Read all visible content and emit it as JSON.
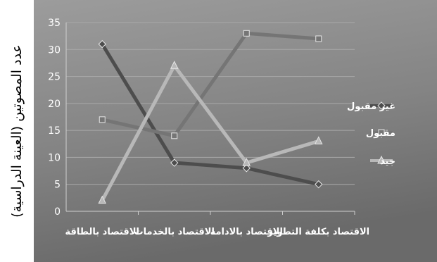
{
  "chart_data": {
    "type": "line",
    "title": "",
    "xlabel": "",
    "ylabel": "عدد المصوتين (العينة الدراسية)",
    "ylim": [
      0,
      35
    ],
    "y_ticks": [
      "0",
      "5",
      "10",
      "15",
      "20",
      "25",
      "30",
      "35"
    ],
    "grid": true,
    "legend_position": "right",
    "categories": [
      "الاقتصاد بالطاقة",
      "الاقتصاد بالخدمات",
      "الاقتصاد بالادامة",
      "الاقتصاد بكلفة التطوير"
    ],
    "series": [
      {
        "name": "غير مقبول",
        "values": [
          31,
          9,
          8,
          5
        ],
        "color": "#4d4d4d",
        "marker": "diamond"
      },
      {
        "name": "مقبول",
        "values": [
          17,
          14,
          33,
          32
        ],
        "color": "#757575",
        "marker": "square"
      },
      {
        "name": "جيد",
        "values": [
          2,
          27,
          9,
          13
        ],
        "color": "#b8b8b8",
        "marker": "triangle"
      }
    ]
  }
}
